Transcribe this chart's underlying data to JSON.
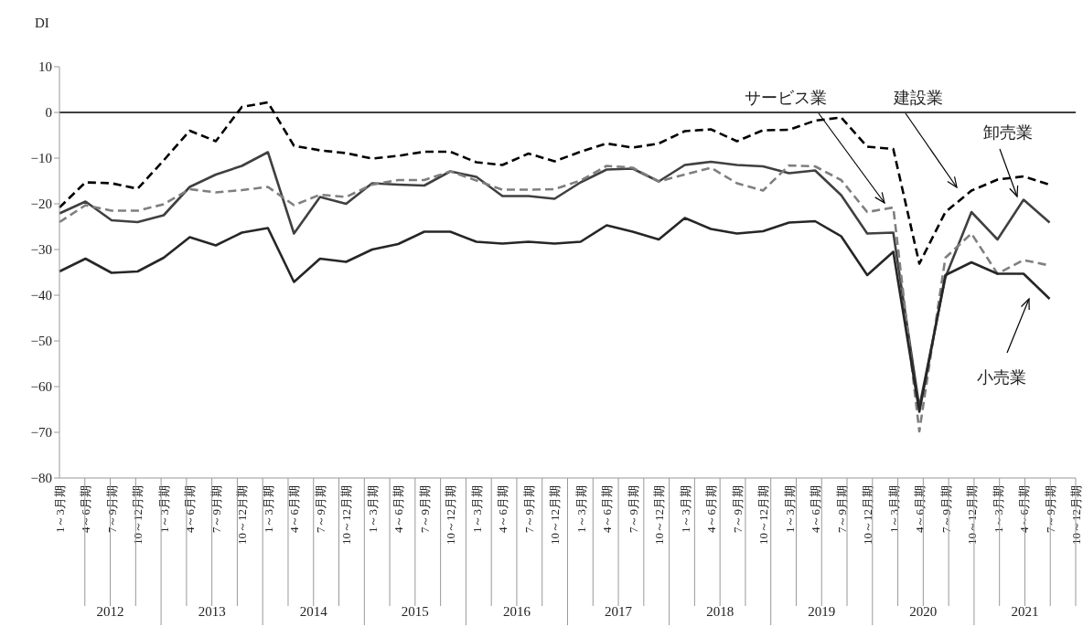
{
  "chart_data": {
    "type": "line",
    "ylabel": "DI",
    "categories": [
      "1～3月期",
      "4～6月期",
      "7～9月期",
      "10～12月期",
      "1～3月期",
      "4～6月期",
      "7～9月期",
      "10～12月期",
      "1～3月期",
      "4～6月期",
      "7～9月期",
      "10～12月期",
      "1～3月期",
      "4～6月期",
      "7～9月期",
      "10～12月期",
      "1～3月期",
      "4～6月期",
      "7～9月期",
      "10～12月期",
      "1～3月期",
      "4～6月期",
      "7～9月期",
      "10～12月期",
      "1～3月期",
      "4～6月期",
      "7～9月期",
      "10～12月期",
      "1～3月期",
      "4～6月期",
      "7～9月期",
      "10～12月期",
      "1～3月期",
      "4～6月期",
      "7～9月期",
      "10～12月期",
      "1～3月期",
      "4～6月期",
      "7～9月期",
      "10～12月期"
    ],
    "annotations": [
      "2012",
      "2013",
      "2014",
      "2015",
      "2016",
      "2017",
      "2018",
      "2019",
      "2020",
      "2021"
    ],
    "series": [
      {
        "name": "建設業",
        "color": "#000000",
        "line_style": "dashed",
        "values": [
          -20.8,
          -15.3,
          -15.5,
          -16.7,
          -10.5,
          -4.0,
          -6.3,
          1.2,
          2.2,
          -7.3,
          -8.3,
          -8.9,
          -10.1,
          -9.5,
          -8.6,
          -8.6,
          -10.9,
          -11.5,
          -9.0,
          -10.7,
          -8.6,
          -6.8,
          -7.7,
          -6.8,
          -4.1,
          -3.7,
          -6.3,
          -3.9,
          -3.8,
          -1.8,
          -1.1,
          -7.5,
          -8.0,
          -33.1,
          -21.8,
          -17.1,
          -14.7,
          -14.0,
          -15.8,
          null
        ]
      },
      {
        "name": "卸売業",
        "color": "#404040",
        "line_style": "solid",
        "values": [
          -22.1,
          -19.5,
          -23.6,
          -24.0,
          -22.5,
          -16.3,
          -13.6,
          -11.7,
          -8.7,
          -26.5,
          -18.5,
          -20.0,
          -15.5,
          -15.8,
          -16.0,
          -12.9,
          -14.1,
          -18.3,
          -18.3,
          -18.9,
          -15.3,
          -12.5,
          -12.3,
          -15.1,
          -11.5,
          -10.8,
          -11.5,
          -11.8,
          -13.3,
          -12.7,
          -18.1,
          -26.5,
          -26.3,
          -64.5,
          -36.1,
          -21.8,
          -27.8,
          -19.1,
          -24.1,
          null
        ]
      },
      {
        "name": "サービス業",
        "color": "#7f7f7f",
        "line_style": "dashed",
        "values": [
          -24.0,
          -20.3,
          -21.5,
          -21.5,
          -20.1,
          -16.8,
          -17.5,
          -17.0,
          -16.3,
          -20.3,
          -18.0,
          -18.5,
          -15.8,
          -14.8,
          -14.8,
          -12.9,
          -14.9,
          -16.9,
          -16.9,
          -16.8,
          -14.9,
          -11.7,
          -12.1,
          -15.1,
          -13.6,
          -12.1,
          -15.5,
          -17.1,
          -11.6,
          -11.8,
          -14.8,
          -21.8,
          -20.8,
          -69.8,
          -31.8,
          -26.5,
          -35.3,
          -32.3,
          -33.5,
          null
        ]
      },
      {
        "name": "小売業",
        "color": "#262626",
        "line_style": "solid",
        "values": [
          -34.8,
          -32.0,
          -35.1,
          -34.8,
          -31.8,
          -27.3,
          -29.1,
          -26.3,
          -25.3,
          -37.1,
          -32.0,
          -32.7,
          -30.0,
          -28.8,
          -26.1,
          -26.1,
          -28.3,
          -28.7,
          -28.3,
          -28.7,
          -28.3,
          -24.7,
          -26.1,
          -27.8,
          -23.1,
          -25.5,
          -26.5,
          -26.0,
          -24.1,
          -23.8,
          -27.1,
          -35.6,
          -30.5,
          -65.5,
          -35.6,
          -32.8,
          -35.3,
          -35.3,
          -40.8,
          null
        ]
      }
    ],
    "ylim": [
      -80,
      10
    ],
    "yticks": [
      {
        "value": -80,
        "label": "−80"
      },
      {
        "value": -70,
        "label": "−70"
      },
      {
        "value": -60,
        "label": "−60"
      },
      {
        "value": -50,
        "label": "−50"
      },
      {
        "value": -40,
        "label": "−40"
      },
      {
        "value": -30,
        "label": "−30"
      },
      {
        "value": -20,
        "label": "−20"
      },
      {
        "value": -10,
        "label": "−10"
      },
      0,
      10
    ],
    "ref_lines": [
      {
        "axis": "y",
        "value": 0,
        "color": "#000000"
      }
    ],
    "grid": false,
    "legend": false,
    "marker": "none"
  }
}
